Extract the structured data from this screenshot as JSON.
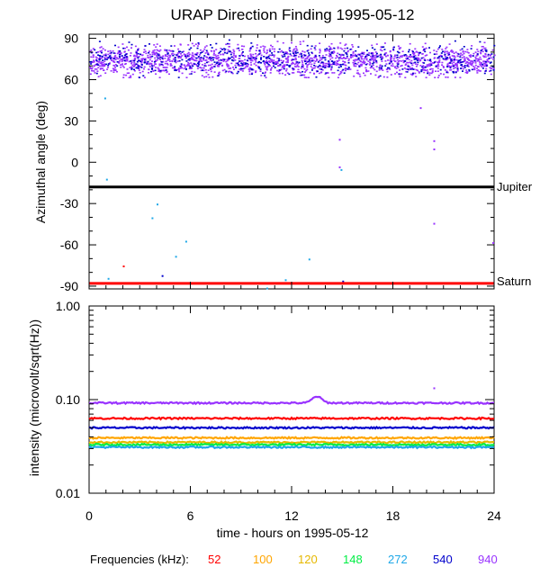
{
  "title": "URAP Direction Finding  1995-05-12",
  "colors": {
    "f52": "#ff0000",
    "f100": "#ffa500",
    "f120": "#e6b800",
    "f148": "#00ee44",
    "f272": "#1fa8e8",
    "f540": "#0000cc",
    "f940": "#9933ff",
    "jupiter_line": "#000000",
    "saturn_line": "#ff0000"
  },
  "legend": {
    "label": "Frequencies (kHz):",
    "items": [
      {
        "text": "52",
        "color": "#ff0000"
      },
      {
        "text": "100",
        "color": "#ffa500"
      },
      {
        "text": "120",
        "color": "#e6b800"
      },
      {
        "text": "148",
        "color": "#00ee44"
      },
      {
        "text": "272",
        "color": "#1fa8e8"
      },
      {
        "text": "540",
        "color": "#0000cc"
      },
      {
        "text": "940",
        "color": "#9933ff"
      }
    ]
  },
  "chart_data": [
    {
      "type": "scatter",
      "ylabel": "Azimuthal angle (deg)",
      "xlim": [
        0,
        24
      ],
      "ylim": [
        -92,
        93
      ],
      "x_ticks": [
        0,
        6,
        12,
        18,
        24
      ],
      "y_ticks": [
        90,
        60,
        30,
        0,
        -30,
        -60,
        -90
      ],
      "y_tick_labels": [
        "90",
        "60",
        "30",
        "0",
        "-30",
        "-60",
        "-90"
      ],
      "reference_lines": [
        {
          "label": "Jupiter",
          "y": -18,
          "color": "#000000"
        },
        {
          "label": "Saturn",
          "y": -88,
          "color": "#ff0000"
        }
      ],
      "series": [
        {
          "color": "#9933ff",
          "band": [
            62,
            86
          ],
          "mean": 74
        },
        {
          "color": "#0000cc",
          "band": [
            62,
            88
          ],
          "mean": 75
        }
      ],
      "outliers": [
        {
          "x": 0.9,
          "y": 47,
          "color": "#1fa8e8"
        },
        {
          "x": 1.0,
          "y": -12,
          "color": "#1fa8e8"
        },
        {
          "x": 2.0,
          "y": -75,
          "color": "#ff0000"
        },
        {
          "x": 3.7,
          "y": -40,
          "color": "#1fa8e8"
        },
        {
          "x": 4.0,
          "y": -30,
          "color": "#1fa8e8"
        },
        {
          "x": 4.3,
          "y": -82,
          "color": "#0000cc"
        },
        {
          "x": 5.1,
          "y": -68,
          "color": "#1fa8e8"
        },
        {
          "x": 5.7,
          "y": -57,
          "color": "#1fa8e8"
        },
        {
          "x": 10.5,
          "y": -91,
          "color": "#1fa8e8"
        },
        {
          "x": 11.6,
          "y": -85,
          "color": "#1fa8e8"
        },
        {
          "x": 13.0,
          "y": -70,
          "color": "#1fa8e8"
        },
        {
          "x": 14.8,
          "y": 17,
          "color": "#9933ff"
        },
        {
          "x": 14.8,
          "y": -3,
          "color": "#9933ff"
        },
        {
          "x": 14.9,
          "y": -5,
          "color": "#1fa8e8"
        },
        {
          "x": 19.6,
          "y": 40,
          "color": "#9933ff"
        },
        {
          "x": 20.4,
          "y": 16,
          "color": "#9933ff"
        },
        {
          "x": 20.4,
          "y": 10,
          "color": "#9933ff"
        },
        {
          "x": 20.4,
          "y": -44,
          "color": "#9933ff"
        },
        {
          "x": 23.9,
          "y": -58,
          "color": "#9933ff"
        },
        {
          "x": 1.1,
          "y": -84,
          "color": "#1fa8e8"
        },
        {
          "x": 15.0,
          "y": -86,
          "color": "#0000cc"
        }
      ]
    },
    {
      "type": "line",
      "ylabel": "intensity (microvolt/sqrt(Hz))",
      "xlabel": "time - hours on 1995-05-12",
      "scale": "log",
      "xlim": [
        0,
        24
      ],
      "ylim": [
        0.01,
        1.0
      ],
      "x_ticks": [
        0,
        6,
        12,
        18,
        24
      ],
      "x_tick_labels": [
        "0",
        "6",
        "12",
        "18",
        "24"
      ],
      "y_tick_labels": [
        "1.00",
        "0.10",
        "0.01"
      ],
      "y_tick_values": [
        1.0,
        0.1,
        0.01
      ],
      "series": [
        {
          "name": "940",
          "color": "#9933ff",
          "level": 0.092,
          "bump": {
            "x": 13.5,
            "peak": 0.108
          }
        },
        {
          "name": "52",
          "color": "#ff0000",
          "level": 0.063
        },
        {
          "name": "540",
          "color": "#0000cc",
          "level": 0.05
        },
        {
          "name": "100",
          "color": "#ffa500",
          "level": 0.039
        },
        {
          "name": "120",
          "color": "#e6b800",
          "level": 0.035
        },
        {
          "name": "148",
          "color": "#00ee44",
          "level": 0.033
        },
        {
          "name": "272",
          "color": "#1fa8e8",
          "level": 0.031
        }
      ],
      "outliers": [
        {
          "x": 20.4,
          "y": 0.135,
          "color": "#9933ff"
        }
      ]
    }
  ]
}
